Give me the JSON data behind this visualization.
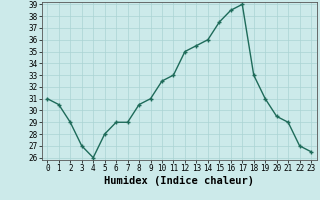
{
  "x": [
    0,
    1,
    2,
    3,
    4,
    5,
    6,
    7,
    8,
    9,
    10,
    11,
    12,
    13,
    14,
    15,
    16,
    17,
    18,
    19,
    20,
    21,
    22,
    23
  ],
  "y": [
    31,
    30.5,
    29,
    27,
    26,
    28,
    29,
    29,
    30.5,
    31,
    32.5,
    33,
    35,
    35.5,
    36,
    37.5,
    38.5,
    39,
    33,
    31,
    29.5,
    29,
    27,
    26.5
  ],
  "xlabel": "Humidex (Indice chaleur)",
  "line_color": "#1e6b5a",
  "marker": "+",
  "bg_color": "#cceaea",
  "grid_color": "#aad4d4",
  "ylim": [
    26,
    39
  ],
  "xlim": [
    -0.5,
    23.5
  ],
  "yticks": [
    26,
    27,
    28,
    29,
    30,
    31,
    32,
    33,
    34,
    35,
    36,
    37,
    38,
    39
  ],
  "xticks": [
    0,
    1,
    2,
    3,
    4,
    5,
    6,
    7,
    8,
    9,
    10,
    11,
    12,
    13,
    14,
    15,
    16,
    17,
    18,
    19,
    20,
    21,
    22,
    23
  ],
  "tick_fontsize": 5.5,
  "xlabel_fontsize": 7.5
}
